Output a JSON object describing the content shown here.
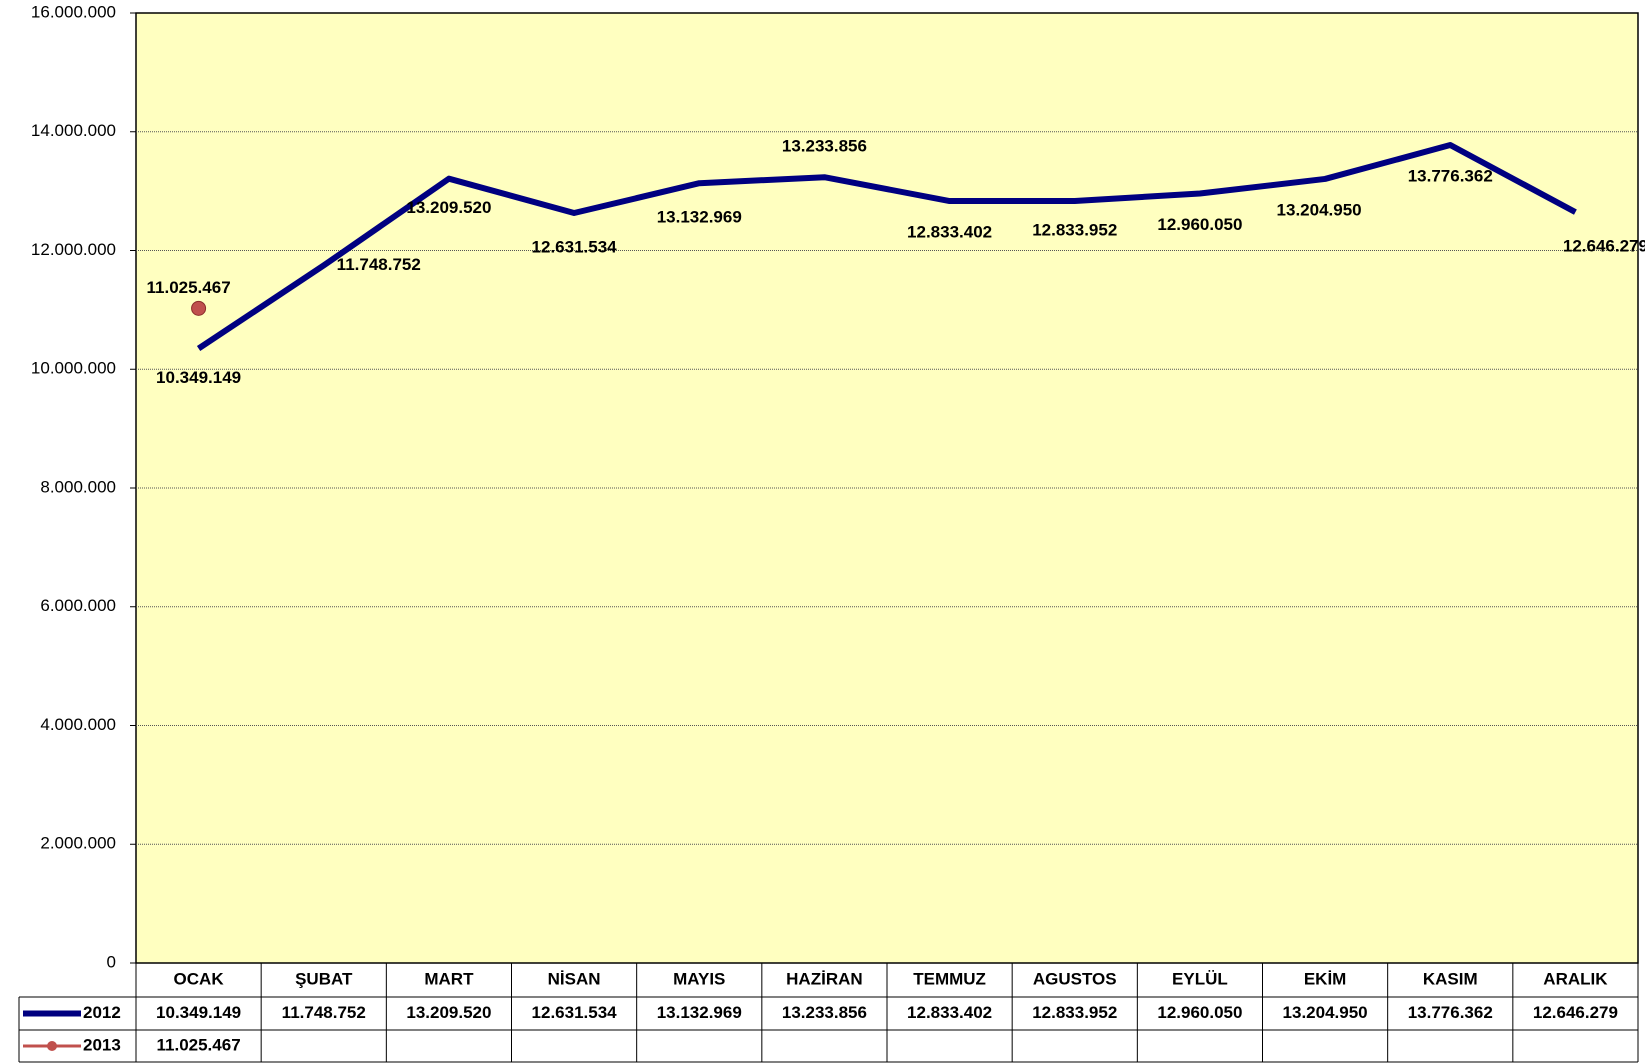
{
  "chart_data": {
    "type": "line",
    "categories": [
      "OCAK",
      "ŞUBAT",
      "MART",
      "NİSAN",
      "MAYIS",
      "HAZİRAN",
      "TEMMUZ",
      "AGUSTOS",
      "EYLÜL",
      "EKİM",
      "KASIM",
      "ARALIK"
    ],
    "series": [
      {
        "name": "2012",
        "color": "#000080",
        "values": [
          10349149,
          11748752,
          13209520,
          12631534,
          13132969,
          13233856,
          12833402,
          12833952,
          12960050,
          13204950,
          13776362,
          12646279
        ],
        "value_labels": [
          "10.349.149",
          "11.748.752",
          "13.209.520",
          "12.631.534",
          "13.132.969",
          "13.233.856",
          "12.833.402",
          "12.833.952",
          "12.960.050",
          "13.204.950",
          "13.776.362",
          "12.646.279"
        ]
      },
      {
        "name": "2013",
        "color": "#c0504d",
        "values": [
          11025467,
          null,
          null,
          null,
          null,
          null,
          null,
          null,
          null,
          null,
          null,
          null
        ],
        "value_labels": [
          "11.025.467",
          null,
          null,
          null,
          null,
          null,
          null,
          null,
          null,
          null,
          null,
          null
        ]
      }
    ],
    "ylim": [
      0,
      16000000
    ],
    "yticks": [
      {
        "value": 0,
        "label": "0"
      },
      {
        "value": 2000000,
        "label": "2.000.000"
      },
      {
        "value": 4000000,
        "label": "4.000.000"
      },
      {
        "value": 6000000,
        "label": "6.000.000"
      },
      {
        "value": 8000000,
        "label": "8.000.000"
      },
      {
        "value": 10000000,
        "label": "10.000.000"
      },
      {
        "value": 12000000,
        "label": "12.000.000"
      },
      {
        "value": 14000000,
        "label": "14.000.000"
      },
      {
        "value": 16000000,
        "label": "16.000.000"
      }
    ],
    "grid": true
  }
}
